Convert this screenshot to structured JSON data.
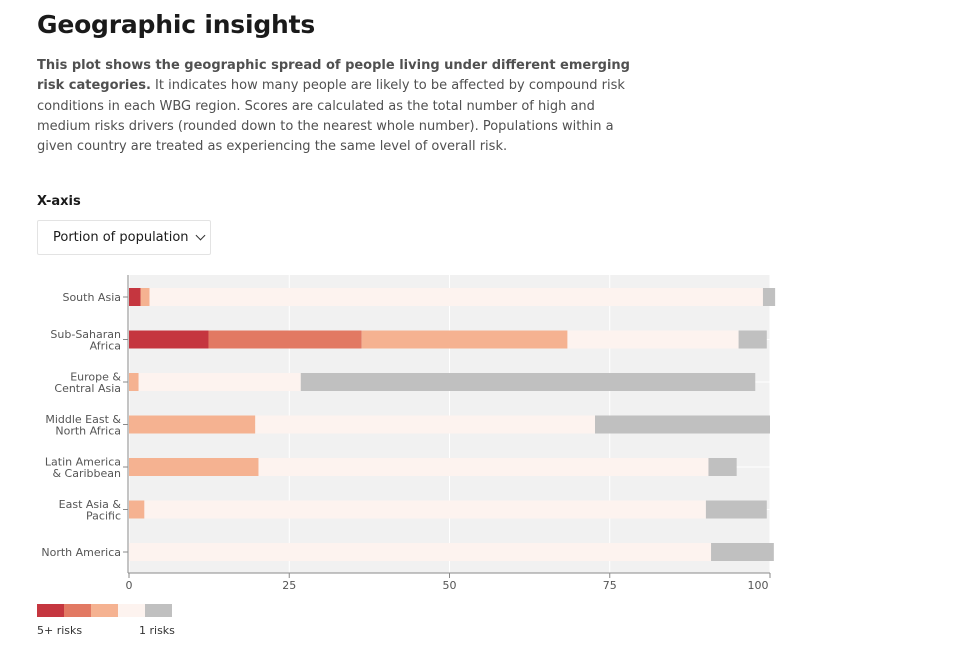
{
  "header": {
    "title": "Geographic insights",
    "description_bold": "This plot shows the geographic spread of people living under different emerging risk categories.",
    "description_rest": " It indicates how many people are likely to be affected by compound risk conditions in each WBG region. Scores are calculated as the total number of high and medium risks drivers (rounded down to the nearest whole number). Populations within a given country are treated as experiencing the same level of overall risk."
  },
  "controls": {
    "xaxis_label": "X-axis",
    "xaxis_selected": "Portion of population"
  },
  "colors": {
    "risk5": "#c5363f",
    "risk4": "#e27963",
    "risk3": "#f5b291",
    "risk2": "#fdf3ef",
    "risk1": "#c0c0c0",
    "plot_bg": "#f1f1f1",
    "grid": "#ffffff",
    "axis": "#8a8a8a"
  },
  "legend": {
    "left_label": "5+ risks",
    "right_label": "1 risks"
  },
  "chart_data": {
    "type": "bar",
    "orientation": "horizontal",
    "stacked": true,
    "categories": [
      [
        "South Asia"
      ],
      [
        "Sub-Saharan",
        "Africa"
      ],
      [
        "Europe &",
        "Central Asia"
      ],
      [
        "Middle East &",
        "North Africa"
      ],
      [
        "Latin America",
        "& Caribbean"
      ],
      [
        "East Asia &",
        "Pacific"
      ],
      [
        "North America"
      ]
    ],
    "series": [
      {
        "values": [
          1.8,
          12.4,
          0,
          0,
          0,
          0,
          0
        ]
      },
      {
        "values": [
          0,
          23.9,
          0,
          0,
          0,
          0,
          0
        ]
      },
      {
        "values": [
          1.4,
          32.1,
          1.5,
          19.7,
          20.2,
          2.4,
          0
        ]
      },
      {
        "values": [
          95.7,
          26.7,
          25.3,
          53.0,
          70.2,
          87.6,
          90.8
        ]
      },
      {
        "values": [
          1.9,
          4.4,
          70.9,
          27.3,
          4.4,
          9.5,
          9.8
        ]
      }
    ],
    "xlim": [
      0,
      100
    ],
    "xticks": [
      "0",
      "25",
      "50",
      "75",
      "100"
    ],
    "grid": true,
    "legend_position": "bottom-left"
  }
}
